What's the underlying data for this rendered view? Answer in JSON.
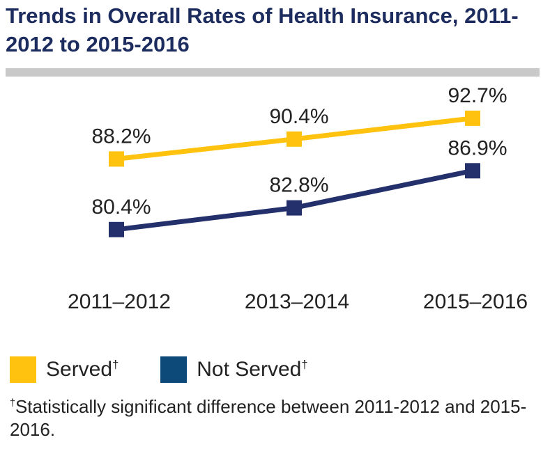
{
  "chart_data": {
    "type": "line",
    "title": "Trends in Overall Rates of Health Insurance, 2011-2012 to 2015-2016",
    "categories": [
      "2011–2012",
      "2013–2014",
      "2015–2016"
    ],
    "series": [
      {
        "name": "Served",
        "legend_marker": "†",
        "values": [
          88.2,
          90.4,
          92.7
        ],
        "labels": [
          "88.2%",
          "90.4%",
          "92.7%"
        ],
        "color": "#ffc20e"
      },
      {
        "name": "Not Served",
        "legend_marker": "†",
        "values": [
          80.4,
          82.8,
          86.9
        ],
        "labels": [
          "80.4%",
          "82.8%",
          "86.9%"
        ],
        "color": "#23306c"
      }
    ],
    "ylim": [
      74,
      98
    ],
    "grid": false,
    "legend_position": "bottom-left",
    "footnote": {
      "marker": "†",
      "text": "Statistically significant difference between 2011-2012 and 2015-2016."
    }
  },
  "legend_swatch_colors": {
    "served": "#ffc20e",
    "not_served": "#0d4a7a"
  },
  "title_color": "#1d2c5e",
  "rule_color": "#c9c9c9"
}
